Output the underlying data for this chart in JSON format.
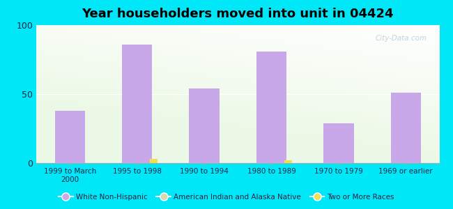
{
  "title": "Year householders moved into unit in 04424",
  "categories": [
    "1999 to March\n2000",
    "1995 to 1998",
    "1990 to 1994",
    "1980 to 1989",
    "1970 to 1979",
    "1969 or earlier"
  ],
  "white_non_hispanic": [
    38,
    86,
    54,
    81,
    29,
    51
  ],
  "american_indian": [
    0,
    0,
    0,
    0,
    0,
    0
  ],
  "two_or_more": [
    0,
    3,
    0,
    2,
    0,
    0
  ],
  "bar_color_white": "#c8a8e8",
  "bar_color_indian": "#d0d0a0",
  "bar_color_two": "#f0e050",
  "background_outer": "#00e8f8",
  "yticks": [
    0,
    50,
    100
  ],
  "ylim": [
    0,
    100
  ],
  "legend_labels": [
    "White Non-Hispanic",
    "American Indian and Alaska Native",
    "Two or More Races"
  ],
  "legend_colors": [
    "#d0a8e8",
    "#d8d8b0",
    "#f0e060"
  ],
  "watermark": "City-Data.com",
  "title_fontsize": 13,
  "bar_width": 0.45
}
